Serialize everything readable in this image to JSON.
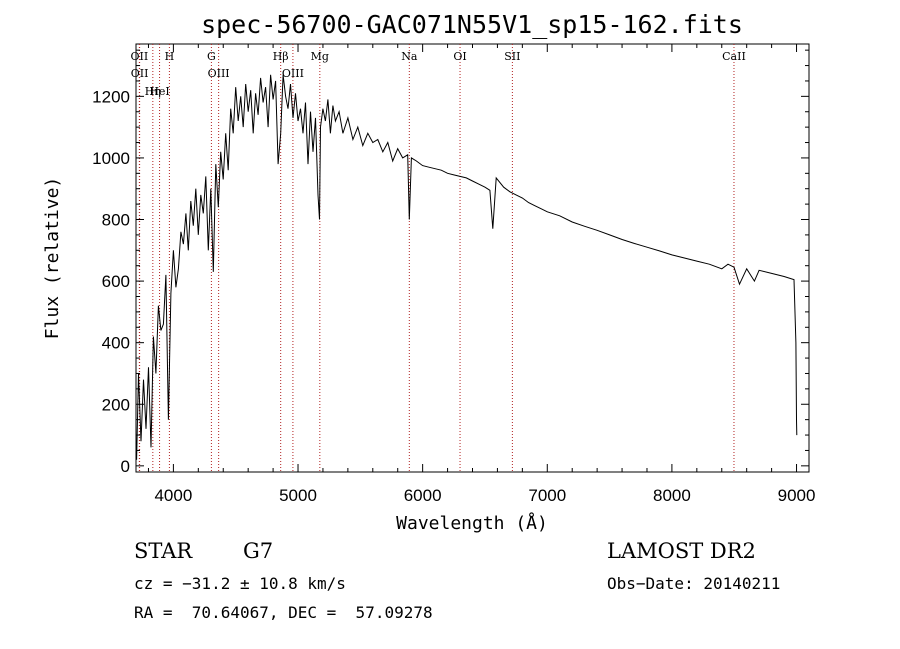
{
  "chart_data": {
    "type": "line",
    "title": "spec-56700-GAC071N55V1_sp15-162.fits",
    "xlabel": "Wavelength (Å)",
    "ylabel": "Flux (relative)",
    "xlim": [
      3700,
      9100
    ],
    "ylim": [
      -20,
      1370
    ],
    "xticks": [
      4000,
      5000,
      6000,
      7000,
      8000,
      9000
    ],
    "yticks": [
      0,
      200,
      400,
      600,
      800,
      1000,
      1200
    ],
    "grid": false,
    "series": [
      {
        "x": [
          3705,
          3720,
          3740,
          3760,
          3780,
          3800,
          3820,
          3840,
          3860,
          3880,
          3900,
          3920,
          3940,
          3960,
          3980,
          4000,
          4020,
          4040,
          4060,
          4080,
          4100,
          4120,
          4140,
          4160,
          4180,
          4200,
          4220,
          4240,
          4260,
          4280,
          4300,
          4320,
          4340,
          4360,
          4380,
          4400,
          4420,
          4440,
          4460,
          4480,
          4500,
          4520,
          4540,
          4560,
          4580,
          4600,
          4620,
          4640,
          4660,
          4680,
          4700,
          4720,
          4740,
          4760,
          4780,
          4800,
          4820,
          4840,
          4861,
          4880,
          4900,
          4920,
          4940,
          4960,
          4980,
          5000,
          5020,
          5040,
          5060,
          5080,
          5100,
          5120,
          5140,
          5160,
          5172,
          5180,
          5200,
          5220,
          5240,
          5260,
          5280,
          5300,
          5330,
          5360,
          5400,
          5440,
          5480,
          5520,
          5560,
          5600,
          5640,
          5680,
          5720,
          5760,
          5800,
          5840,
          5880,
          5893,
          5910,
          5950,
          6000,
          6050,
          6100,
          6150,
          6200,
          6250,
          6300,
          6350,
          6400,
          6450,
          6500,
          6540,
          6563,
          6590,
          6650,
          6700,
          6750,
          6800,
          6850,
          6900,
          6950,
          7000,
          7100,
          7200,
          7300,
          7400,
          7500,
          7600,
          7700,
          7800,
          7900,
          8000,
          8100,
          8200,
          8300,
          8400,
          8450,
          8498,
          8542,
          8600,
          8662,
          8700,
          8800,
          8900,
          8980,
          8995,
          9000,
          9002
        ],
        "y": [
          20,
          300,
          80,
          280,
          120,
          320,
          60,
          420,
          300,
          520,
          440,
          460,
          620,
          150,
          560,
          700,
          580,
          640,
          760,
          720,
          820,
          700,
          860,
          780,
          900,
          750,
          880,
          820,
          940,
          700,
          900,
          630,
          980,
          840,
          1020,
          930,
          1080,
          960,
          1160,
          1080,
          1230,
          1120,
          1200,
          1100,
          1240,
          1150,
          1220,
          1080,
          1210,
          1140,
          1260,
          1180,
          1230,
          1100,
          1270,
          1190,
          1250,
          980,
          1080,
          1270,
          1200,
          1160,
          1240,
          1130,
          1210,
          1120,
          1160,
          1080,
          1180,
          980,
          1150,
          1020,
          1130,
          880,
          800,
          1100,
          1160,
          1120,
          1190,
          1080,
          1170,
          1120,
          1150,
          1080,
          1130,
          1060,
          1100,
          1040,
          1080,
          1050,
          1060,
          1020,
          1050,
          990,
          1030,
          1000,
          1010,
          800,
          1000,
          990,
          975,
          970,
          965,
          960,
          950,
          945,
          940,
          935,
          925,
          915,
          905,
          895,
          770,
          935,
          905,
          890,
          880,
          870,
          855,
          845,
          835,
          825,
          812,
          792,
          778,
          765,
          750,
          735,
          722,
          710,
          698,
          685,
          675,
          665,
          655,
          640,
          655,
          645,
          590,
          640,
          600,
          635,
          625,
          615,
          605,
          400,
          150,
          100
        ]
      }
    ],
    "line_markers": [
      {
        "name": "OII",
        "x": 3727
      },
      {
        "name": "OII",
        "x": 3729
      },
      {
        "name": "Hη",
        "x": 3835
      },
      {
        "name": "HeI",
        "x": 3889
      },
      {
        "name": "H",
        "x": 3968
      },
      {
        "name": "G",
        "x": 4305
      },
      {
        "name": "OIII",
        "x": 4363
      },
      {
        "name": "Hβ",
        "x": 4861
      },
      {
        "name": "OIII",
        "x": 4959
      },
      {
        "name": "Mg",
        "x": 5175
      },
      {
        "name": "Na",
        "x": 5893
      },
      {
        "name": "OI",
        "x": 6300
      },
      {
        "name": "SII",
        "x": 6720
      },
      {
        "name": "CaII",
        "x": 8498
      }
    ],
    "marker_color": "#b22222"
  },
  "info": {
    "class": "STAR",
    "subclass": "G7",
    "survey": "LAMOST DR2",
    "cz": "cz = −31.2 ± 10.8 km/s",
    "obs_date": "Obs−Date: 20140211",
    "coords": "RA =  70.64067, DEC =  57.09278"
  }
}
